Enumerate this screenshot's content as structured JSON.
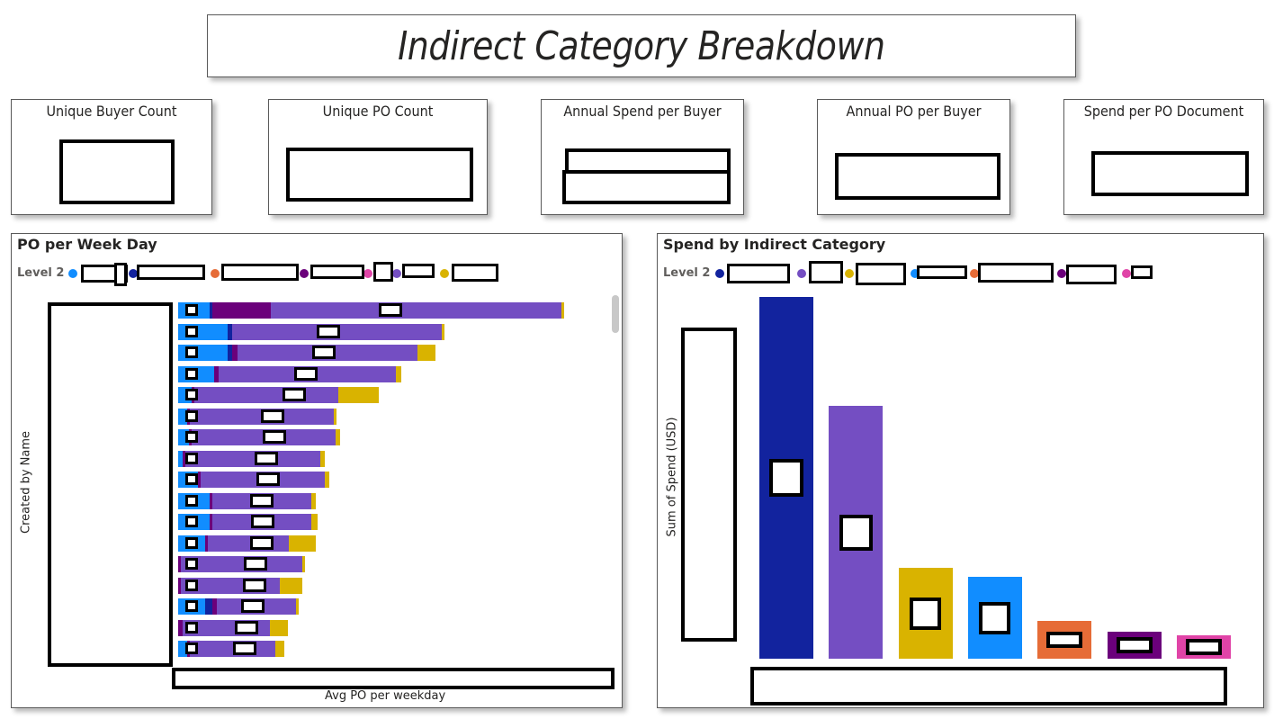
{
  "dashboard": {
    "title": "Indirect Category Breakdown"
  },
  "kpis": [
    {
      "label": "Unique Buyer Count"
    },
    {
      "label": "Unique PO Count"
    },
    {
      "label": "Annual Spend per Buyer"
    },
    {
      "label": "Annual PO per Buyer"
    },
    {
      "label": "Spend per PO Document"
    }
  ],
  "colors": {
    "blue": "#118DFF",
    "navy": "#12239E",
    "orange": "#E66C37",
    "dark_purple": "#6B007B",
    "pink": "#E044A7",
    "purple": "#744EC2",
    "gold": "#D9B300"
  },
  "po_chart": {
    "title": "PO per Week Day",
    "legend_label": "Level 2",
    "y_axis_title": "Created by Name",
    "x_axis_title": "Avg PO per weekday",
    "legend_colors": [
      "blue",
      "navy",
      "orange",
      "dark_purple",
      "pink",
      "purple",
      "gold"
    ]
  },
  "spend_chart": {
    "title": "Spend by Indirect Category",
    "legend_label": "Level 2",
    "y_axis_title": "Sum of Spend (USD)",
    "legend_colors": [
      "navy",
      "purple",
      "gold",
      "blue",
      "orange",
      "dark_purple",
      "pink"
    ]
  },
  "chart_data": [
    {
      "type": "bar",
      "orientation": "horizontal",
      "stacked": true,
      "title": "PO per Week Day",
      "xlabel": "Avg PO per weekday",
      "ylabel": "Created by Name",
      "note": "category names and values are redacted in the screenshot; values below are relative bar lengths",
      "series_colors": [
        "blue",
        "navy",
        "dark_purple",
        "purple",
        "gold"
      ],
      "rows": [
        [
          35,
          3,
          65,
          323,
          3
        ],
        [
          55,
          5,
          0,
          233,
          3
        ],
        [
          55,
          5,
          6,
          200,
          20
        ],
        [
          40,
          0,
          5,
          197,
          6
        ],
        [
          15,
          0,
          3,
          160,
          45
        ],
        [
          10,
          0,
          3,
          160,
          3
        ],
        [
          12,
          0,
          3,
          160,
          5
        ],
        [
          5,
          0,
          3,
          150,
          5
        ],
        [
          22,
          0,
          3,
          138,
          5
        ],
        [
          35,
          0,
          3,
          110,
          5
        ],
        [
          35,
          0,
          3,
          110,
          7
        ],
        [
          30,
          0,
          3,
          90,
          30
        ],
        [
          0,
          0,
          3,
          135,
          3
        ],
        [
          0,
          0,
          3,
          110,
          25
        ],
        [
          30,
          8,
          5,
          88,
          3
        ],
        [
          0,
          0,
          5,
          97,
          20
        ],
        [
          10,
          0,
          3,
          95,
          10
        ]
      ]
    },
    {
      "type": "bar",
      "title": "Spend by Indirect Category",
      "ylabel": "Sum of Spend (USD)",
      "note": "category names and values are redacted in the screenshot; values below are relative bar heights",
      "bar_colors": [
        "navy",
        "purple",
        "gold",
        "blue",
        "orange",
        "dark_purple",
        "pink"
      ],
      "values": [
        402,
        281,
        101,
        91,
        42,
        30,
        26
      ]
    }
  ]
}
